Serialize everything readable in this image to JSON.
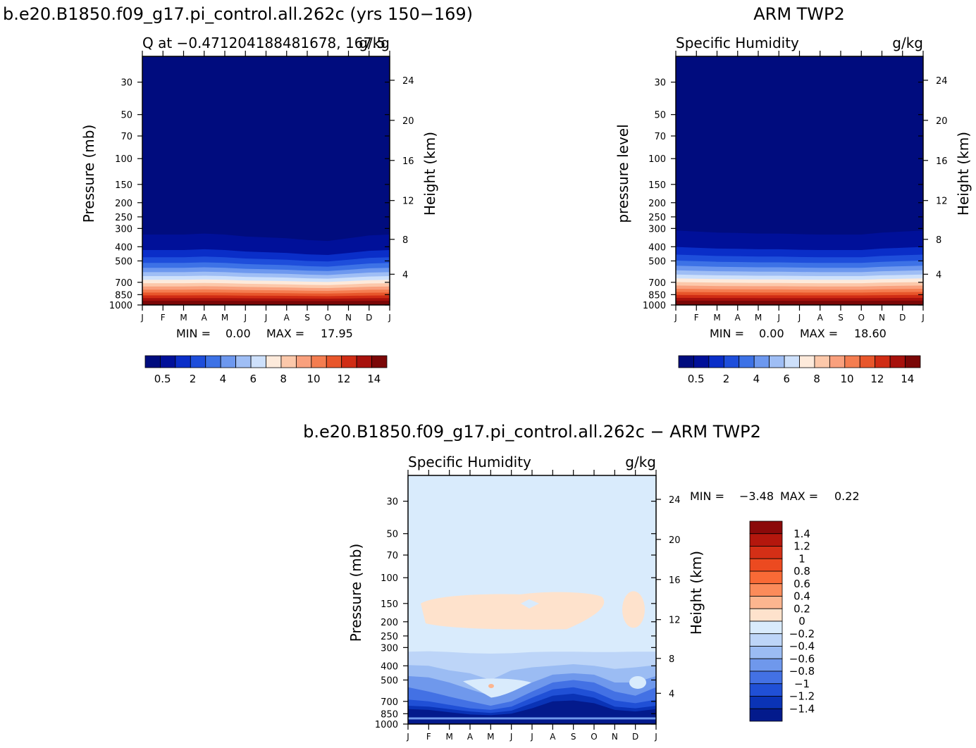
{
  "figure": {
    "title_left": "b.e20.B1850.f09_g17.pi_control.all.262c (yrs 150−169)",
    "title_right": "ARM TWP2",
    "title_bottom": "b.e20.B1850.f09_g17.pi_control.all.262c − ARM TWP2"
  },
  "chart_data": [
    {
      "type": "heatmap",
      "id": "model",
      "title": "b.e20.B1850.f09_g17.pi_control.all.262c (yrs 150−169)",
      "subtitle_left": "Q at −0.471204188481678, 167.5",
      "subtitle_right": "g/kg",
      "ylabel": "Pressure (mb)",
      "y2label": "Height (km)",
      "x_ticks": [
        "J",
        "F",
        "M",
        "A",
        "M",
        "J",
        "J",
        "A",
        "S",
        "O",
        "N",
        "D",
        "J"
      ],
      "y_ticks": [
        30,
        50,
        70,
        100,
        150,
        200,
        250,
        300,
        400,
        500,
        700,
        850,
        1000
      ],
      "y2_ticks": [
        24,
        20,
        16,
        12,
        8,
        4
      ],
      "ylim": [
        1000,
        20
      ],
      "y_scale": "log",
      "stats": {
        "min_label": "MIN =",
        "min": "0.00",
        "max_label": "MAX =",
        "max": "17.95"
      },
      "colorbar": {
        "orientation": "horizontal",
        "labels": [
          "0.5",
          "2",
          "4",
          "6",
          "8",
          "10",
          "12",
          "14"
        ],
        "colors": [
          "#000c7e",
          "#001099",
          "#0a2ec8",
          "#1e4edb",
          "#3d72e6",
          "#6d98ef",
          "#9fbef5",
          "#cde0fb",
          "#fdeadb",
          "#fcc8aa",
          "#f9a07d",
          "#f47d50",
          "#e8562b",
          "#d02c14",
          "#a7110c",
          "#7b0707"
        ]
      },
      "profile": {
        "months": [
          "J",
          "F",
          "M",
          "A",
          "M",
          "J",
          "J",
          "A",
          "S",
          "O",
          "N",
          "D",
          "J"
        ],
        "top_of_moisture_hPa": [
          330,
          330,
          330,
          325,
          330,
          340,
          345,
          350,
          360,
          365,
          350,
          335,
          330
        ],
        "surface_q": [
          17.5,
          17.6,
          17.7,
          17.6,
          17.4,
          17.2,
          17.0,
          16.9,
          17.0,
          17.2,
          17.5,
          17.8,
          17.95
        ]
      }
    },
    {
      "type": "heatmap",
      "id": "obs",
      "title": "ARM TWP2",
      "subtitle_left": "Specific Humidity",
      "subtitle_right": "g/kg",
      "ylabel": "pressure level",
      "y2label": "Height (km)",
      "x_ticks": [
        "J",
        "F",
        "M",
        "A",
        "M",
        "J",
        "J",
        "A",
        "S",
        "O",
        "N",
        "D",
        "J"
      ],
      "y_ticks": [
        30,
        50,
        70,
        100,
        150,
        200,
        250,
        300,
        400,
        500,
        700,
        850,
        1000
      ],
      "y2_ticks": [
        24,
        20,
        16,
        12,
        8,
        4
      ],
      "ylim": [
        1000,
        20
      ],
      "y_scale": "log",
      "stats": {
        "min_label": "MIN =",
        "min": "0.00",
        "max_label": "MAX =",
        "max": "18.60"
      },
      "colorbar": {
        "orientation": "horizontal",
        "labels": [
          "0.5",
          "2",
          "4",
          "6",
          "8",
          "10",
          "12",
          "14"
        ],
        "colors": [
          "#000c7e",
          "#001099",
          "#0a2ec8",
          "#1e4edb",
          "#3d72e6",
          "#6d98ef",
          "#9fbef5",
          "#cde0fb",
          "#fdeadb",
          "#fcc8aa",
          "#f9a07d",
          "#f47d50",
          "#e8562b",
          "#d02c14",
          "#a7110c",
          "#7b0707"
        ]
      },
      "profile": {
        "months": [
          "J",
          "F",
          "M",
          "A",
          "M",
          "J",
          "J",
          "A",
          "S",
          "O",
          "N",
          "D",
          "J"
        ],
        "top_of_moisture_hPa": [
          310,
          315,
          320,
          322,
          325,
          325,
          328,
          330,
          330,
          330,
          320,
          315,
          310
        ],
        "surface_q": [
          18.3,
          18.4,
          18.5,
          18.5,
          18.4,
          18.3,
          18.2,
          18.1,
          18.2,
          18.3,
          18.4,
          18.5,
          18.6
        ]
      }
    },
    {
      "type": "heatmap",
      "id": "difference",
      "title": "b.e20.B1850.f09_g17.pi_control.all.262c − ARM TWP2",
      "subtitle_left": "Specific Humidity",
      "subtitle_right": "g/kg",
      "ylabel": "Pressure (mb)",
      "y2label": "Height (km)",
      "x_ticks": [
        "J",
        "F",
        "M",
        "A",
        "M",
        "J",
        "J",
        "A",
        "S",
        "O",
        "N",
        "D",
        "J"
      ],
      "y_ticks": [
        30,
        50,
        70,
        100,
        150,
        200,
        250,
        300,
        400,
        500,
        700,
        850,
        1000
      ],
      "y2_ticks": [
        24,
        20,
        16,
        12,
        8,
        4
      ],
      "ylim": [
        1000,
        20
      ],
      "y_scale": "log",
      "stats": {
        "min_label": "MIN =",
        "min": "−3.48",
        "max_label": "MAX =",
        "max": "0.22"
      },
      "colorbar": {
        "orientation": "vertical",
        "labels": [
          "1.4",
          "1.2",
          "1",
          "0.8",
          "0.6",
          "0.4",
          "0.2",
          "0",
          "−0.2",
          "−0.4",
          "−0.6",
          "−0.8",
          "−1",
          "−1.2",
          "−1.4"
        ],
        "colors": [
          "#8b0a0a",
          "#b4170d",
          "#d42f16",
          "#ec4a20",
          "#f96a36",
          "#fb8b5a",
          "#fcb58f",
          "#fee2cc",
          "#d9ebfc",
          "#bdd5f8",
          "#9bbcf3",
          "#6f98ec",
          "#4371e4",
          "#2050d6",
          "#0a33b6",
          "#031a8c"
        ]
      },
      "regions": {
        "upper_positive": "150–200 hPa, Jan–Sep and Dec",
        "lower_negative": "700–1000 hPa, strongest Jul–Oct",
        "mid_positive_blob": "500–600 hPa, Apr–May"
      }
    }
  ]
}
